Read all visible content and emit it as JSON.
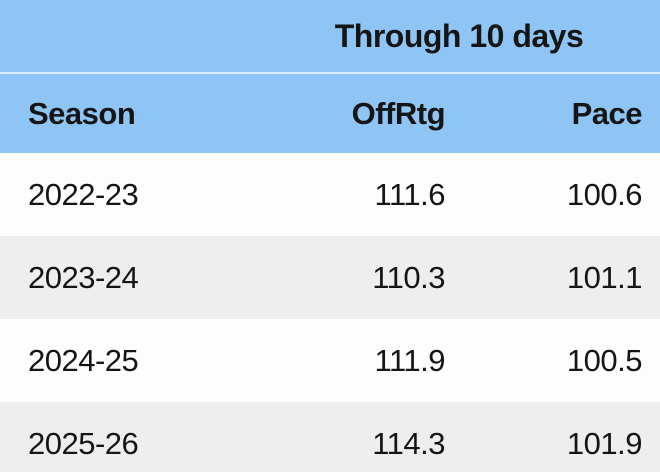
{
  "chart_data": {
    "type": "table",
    "title": "Through 10 days",
    "columns": [
      "Season",
      "OffRtg",
      "Pace"
    ],
    "rows": [
      [
        "2022-23",
        "111.6",
        "100.6"
      ],
      [
        "2023-24",
        "110.3",
        "101.1"
      ],
      [
        "2024-25",
        "111.9",
        "100.5"
      ],
      [
        "2025-26",
        "114.3",
        "101.9"
      ]
    ]
  },
  "colors": {
    "header_blue": "#8fc5f5",
    "header_divider": "#dceefd",
    "row_white": "#fdfdfd",
    "row_gray": "#eeeeee",
    "text": "#151515"
  }
}
